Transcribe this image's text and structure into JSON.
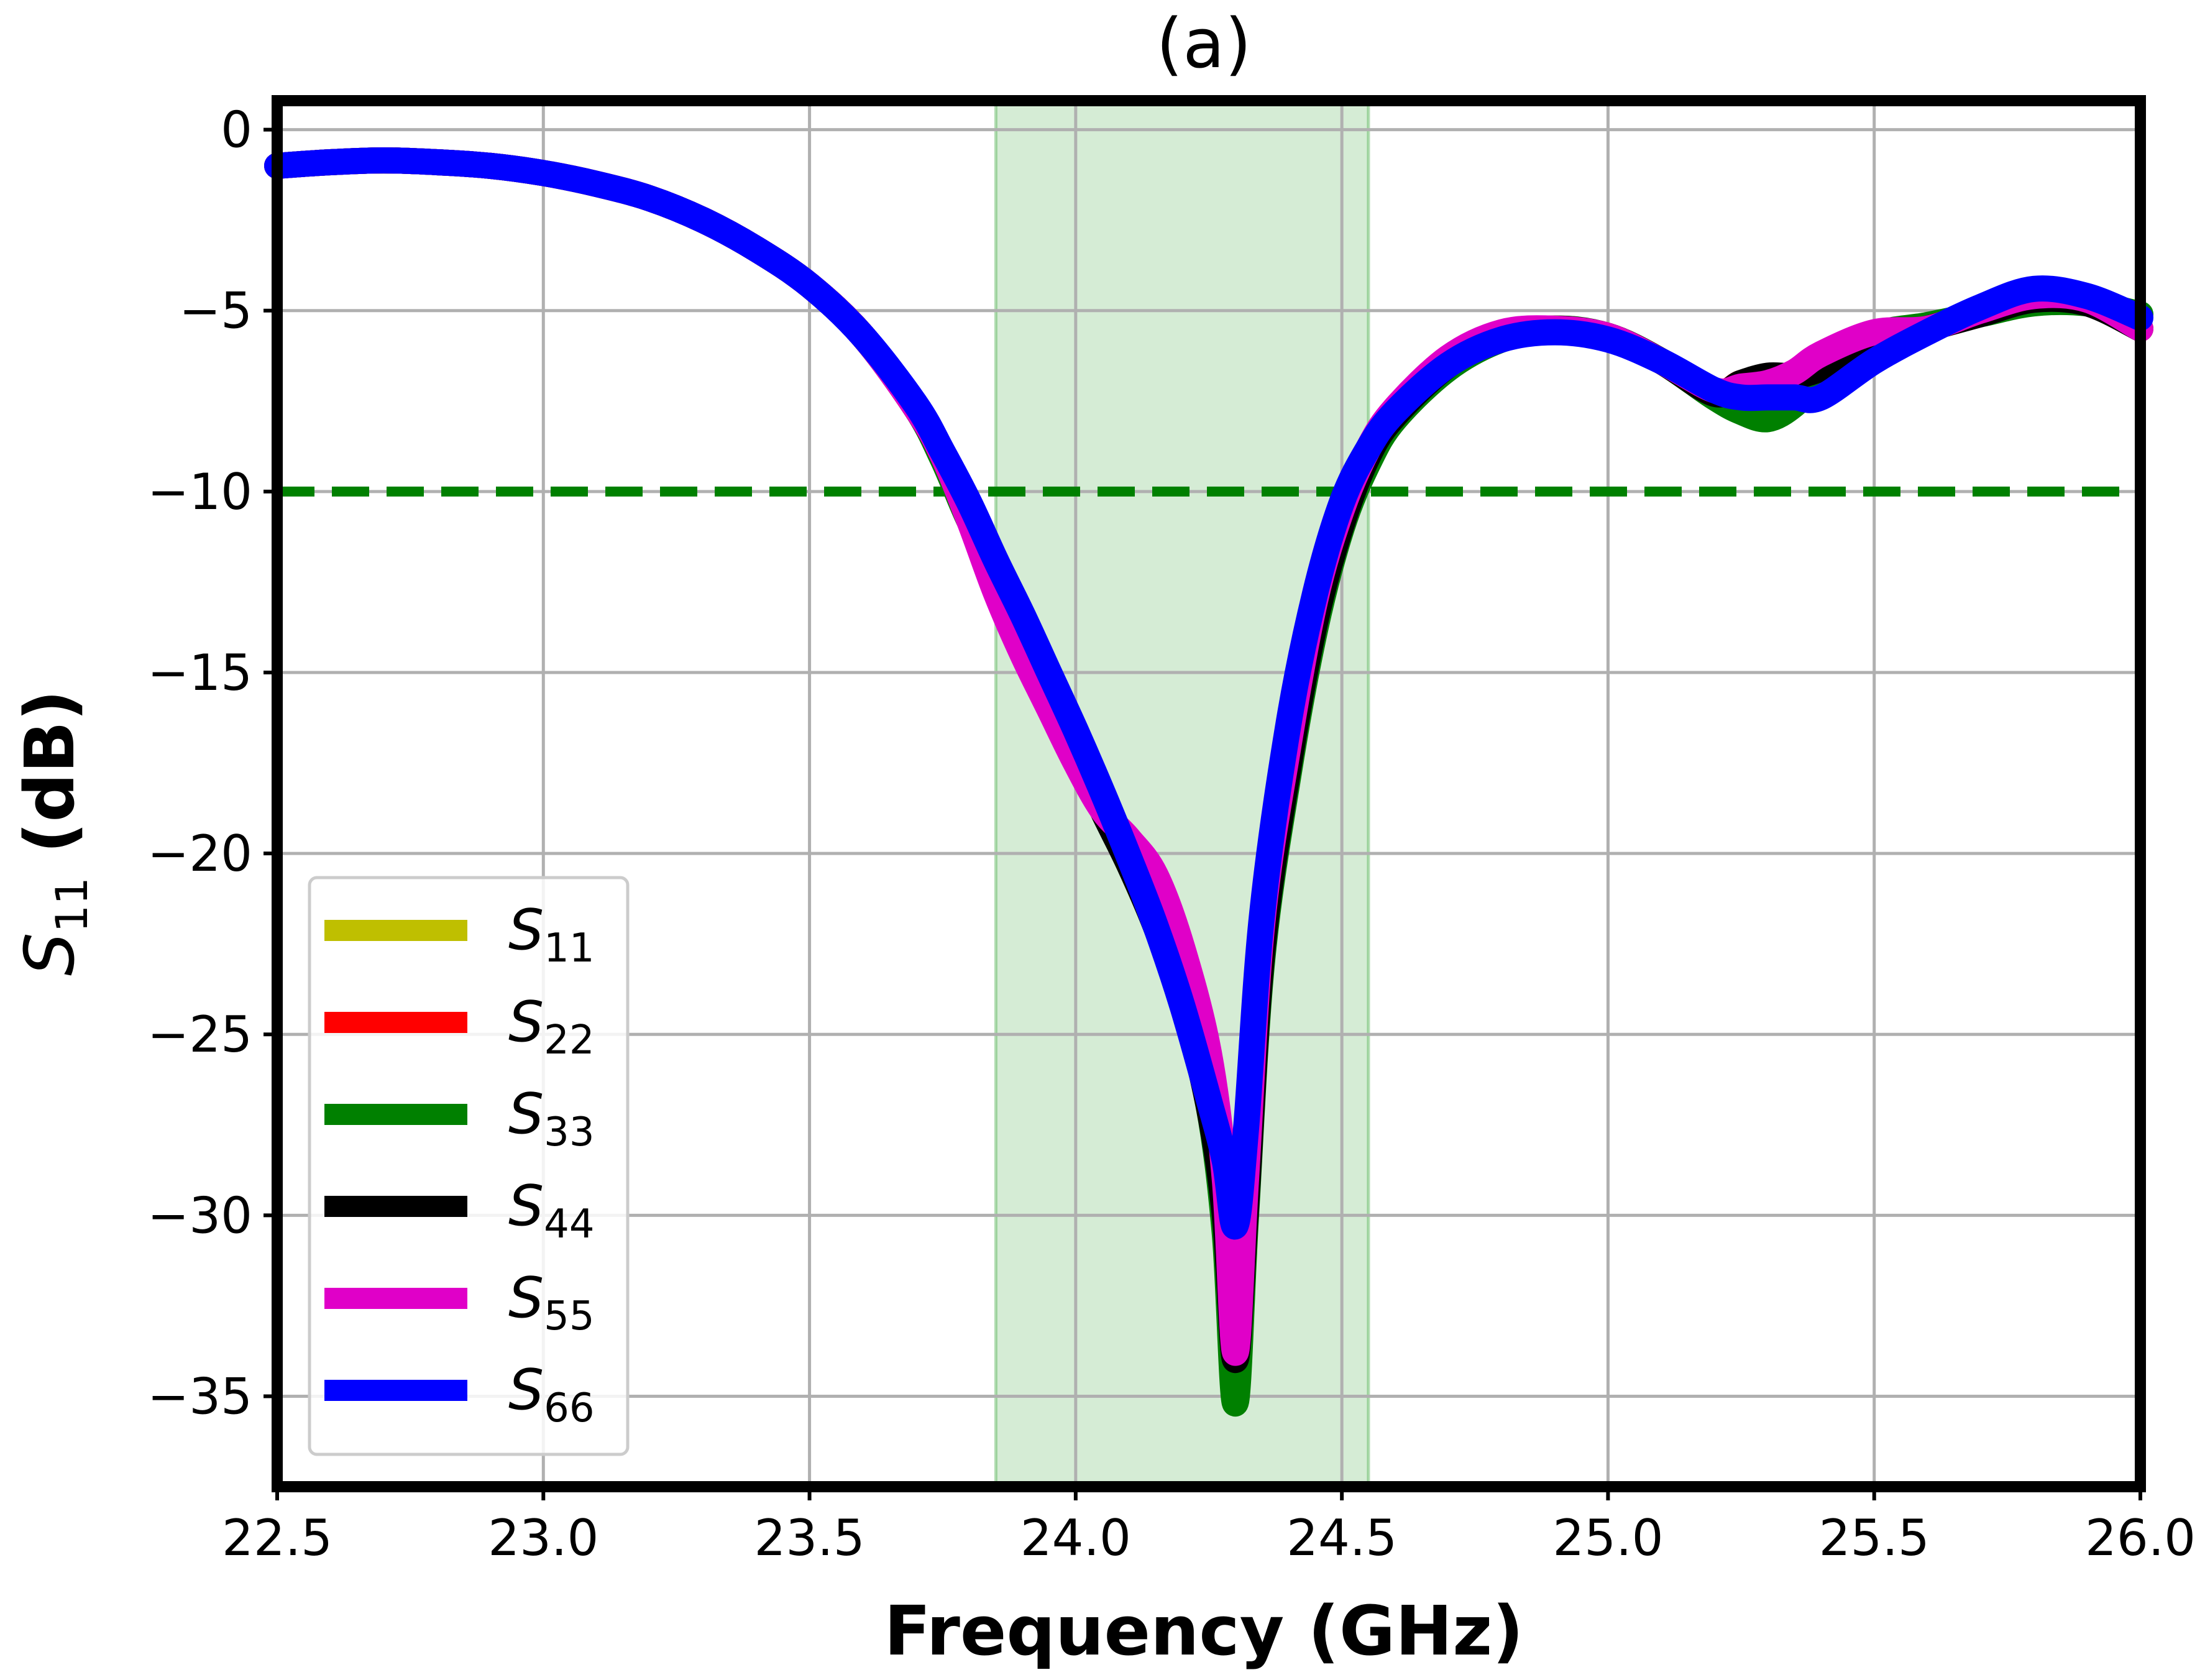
{
  "chart_data": {
    "type": "line",
    "title": "(a)",
    "xlabel": "Frequency (GHz)",
    "ylabel": "S11 (dB)",
    "ylabel_main": "S",
    "ylabel_sub": "11",
    "ylabel_unit": " (dB)",
    "xlim": [
      22.5,
      26.0
    ],
    "ylim": [
      -37.5,
      0.8
    ],
    "xticks": [
      22.5,
      23.0,
      23.5,
      24.0,
      24.5,
      25.0,
      25.5,
      26.0
    ],
    "xtick_labels": [
      "22.5",
      "23.0",
      "23.5",
      "24.0",
      "24.5",
      "25.0",
      "25.5",
      "26.0"
    ],
    "yticks": [
      0,
      -5,
      -10,
      -15,
      -20,
      -25,
      -30,
      -35
    ],
    "ytick_labels": [
      "0",
      "−5",
      "−10",
      "−15",
      "−20",
      "−25",
      "−30",
      "−35"
    ],
    "grid": true,
    "legend_position": "lower-left",
    "shaded_band": {
      "x0": 23.85,
      "x1": 24.55,
      "color": "#2ca02c"
    },
    "reference_line": {
      "y": -10,
      "color": "#008000",
      "style": "dashed"
    },
    "x": [
      22.5,
      22.6,
      22.7,
      22.8,
      22.9,
      23.0,
      23.1,
      23.2,
      23.3,
      23.4,
      23.5,
      23.6,
      23.7,
      23.75,
      23.8,
      23.85,
      23.9,
      23.95,
      24.0,
      24.05,
      24.1,
      24.15,
      24.2,
      24.25,
      24.28,
      24.3,
      24.32,
      24.35,
      24.4,
      24.45,
      24.5,
      24.55,
      24.6,
      24.7,
      24.8,
      24.9,
      25.0,
      25.1,
      25.2,
      25.25,
      25.3,
      25.35,
      25.4,
      25.5,
      25.6,
      25.7,
      25.8,
      25.9,
      26.0
    ],
    "series": [
      {
        "name": "S",
        "sub": "11",
        "color": "#bfbf00",
        "values": [
          -1.0,
          -0.9,
          -0.85,
          -0.9,
          -1.0,
          -1.2,
          -1.5,
          -1.9,
          -2.5,
          -3.3,
          -4.3,
          -5.7,
          -7.7,
          -9.0,
          -10.6,
          -12.4,
          -14.0,
          -15.5,
          -17.0,
          -18.5,
          -20.0,
          -21.6,
          -23.5,
          -26.5,
          -29.5,
          -33.0,
          -29.5,
          -22.5,
          -17.5,
          -13.5,
          -10.8,
          -9.0,
          -7.9,
          -6.5,
          -5.7,
          -5.5,
          -5.7,
          -6.4,
          -7.3,
          -7.2,
          -7.0,
          -7.0,
          -6.7,
          -6.0,
          -5.5,
          -5.0,
          -4.6,
          -4.7,
          -5.5
        ]
      },
      {
        "name": "S",
        "sub": "22",
        "color": "#ff0000",
        "values": [
          -1.0,
          -0.9,
          -0.85,
          -0.9,
          -1.0,
          -1.2,
          -1.5,
          -1.9,
          -2.5,
          -3.3,
          -4.3,
          -5.7,
          -7.7,
          -9.0,
          -10.6,
          -12.4,
          -14.0,
          -15.5,
          -17.0,
          -18.5,
          -20.0,
          -21.6,
          -23.5,
          -26.5,
          -29.5,
          -33.5,
          -29.5,
          -22.5,
          -17.5,
          -13.5,
          -10.8,
          -9.0,
          -7.9,
          -6.5,
          -5.7,
          -5.5,
          -5.7,
          -6.4,
          -7.3,
          -7.0,
          -6.9,
          -6.9,
          -6.6,
          -5.9,
          -5.5,
          -5.0,
          -4.6,
          -4.7,
          -5.5
        ]
      },
      {
        "name": "S",
        "sub": "33",
        "color": "#008000",
        "values": [
          -1.0,
          -0.9,
          -0.85,
          -0.9,
          -1.0,
          -1.2,
          -1.5,
          -1.9,
          -2.5,
          -3.3,
          -4.3,
          -5.7,
          -7.7,
          -9.1,
          -10.8,
          -12.2,
          -13.8,
          -15.4,
          -17.0,
          -18.6,
          -20.2,
          -22.0,
          -24.0,
          -27.0,
          -30.5,
          -35.2,
          -30.0,
          -23.0,
          -17.8,
          -13.8,
          -11.0,
          -9.2,
          -8.0,
          -6.6,
          -5.8,
          -5.5,
          -5.7,
          -6.4,
          -7.4,
          -7.8,
          -8.0,
          -7.6,
          -6.8,
          -5.7,
          -5.4,
          -5.1,
          -4.8,
          -4.8,
          -5.1
        ]
      },
      {
        "name": "S",
        "sub": "44",
        "color": "#000000",
        "values": [
          -1.0,
          -0.9,
          -0.85,
          -0.9,
          -1.0,
          -1.2,
          -1.5,
          -1.9,
          -2.5,
          -3.3,
          -4.3,
          -5.7,
          -7.7,
          -9.0,
          -10.7,
          -12.6,
          -14.2,
          -15.7,
          -17.2,
          -18.8,
          -20.3,
          -22.0,
          -24.0,
          -27.0,
          -30.0,
          -34.0,
          -29.8,
          -22.8,
          -17.6,
          -13.6,
          -10.9,
          -9.0,
          -7.9,
          -6.5,
          -5.7,
          -5.5,
          -5.7,
          -6.4,
          -7.3,
          -7.0,
          -6.8,
          -6.8,
          -6.6,
          -5.9,
          -5.5,
          -5.1,
          -4.7,
          -4.8,
          -5.5
        ]
      },
      {
        "name": "S",
        "sub": "55",
        "color": "#e000c8",
        "values": [
          -1.0,
          -0.9,
          -0.85,
          -0.9,
          -1.0,
          -1.2,
          -1.5,
          -1.9,
          -2.5,
          -3.3,
          -4.3,
          -5.7,
          -7.7,
          -9.0,
          -10.8,
          -12.8,
          -14.5,
          -16.0,
          -17.5,
          -18.8,
          -19.6,
          -20.6,
          -22.6,
          -25.5,
          -29.0,
          -33.8,
          -29.0,
          -22.0,
          -17.0,
          -13.0,
          -10.5,
          -8.8,
          -7.7,
          -6.3,
          -5.6,
          -5.5,
          -5.7,
          -6.4,
          -7.2,
          -7.1,
          -7.0,
          -6.7,
          -6.2,
          -5.6,
          -5.5,
          -5.0,
          -4.6,
          -4.7,
          -5.5
        ]
      },
      {
        "name": "S",
        "sub": "66",
        "color": "#0000ff",
        "values": [
          -1.0,
          -0.9,
          -0.85,
          -0.9,
          -1.0,
          -1.2,
          -1.5,
          -1.9,
          -2.5,
          -3.3,
          -4.3,
          -5.7,
          -7.6,
          -8.9,
          -10.3,
          -11.9,
          -13.4,
          -15.0,
          -16.6,
          -18.3,
          -20.1,
          -22.0,
          -24.2,
          -26.8,
          -28.5,
          -30.3,
          -27.6,
          -21.7,
          -16.4,
          -12.8,
          -10.3,
          -8.8,
          -7.8,
          -6.5,
          -5.8,
          -5.6,
          -5.8,
          -6.4,
          -7.2,
          -7.4,
          -7.4,
          -7.4,
          -7.4,
          -6.4,
          -5.6,
          -4.9,
          -4.4,
          -4.6,
          -5.2
        ]
      }
    ]
  }
}
